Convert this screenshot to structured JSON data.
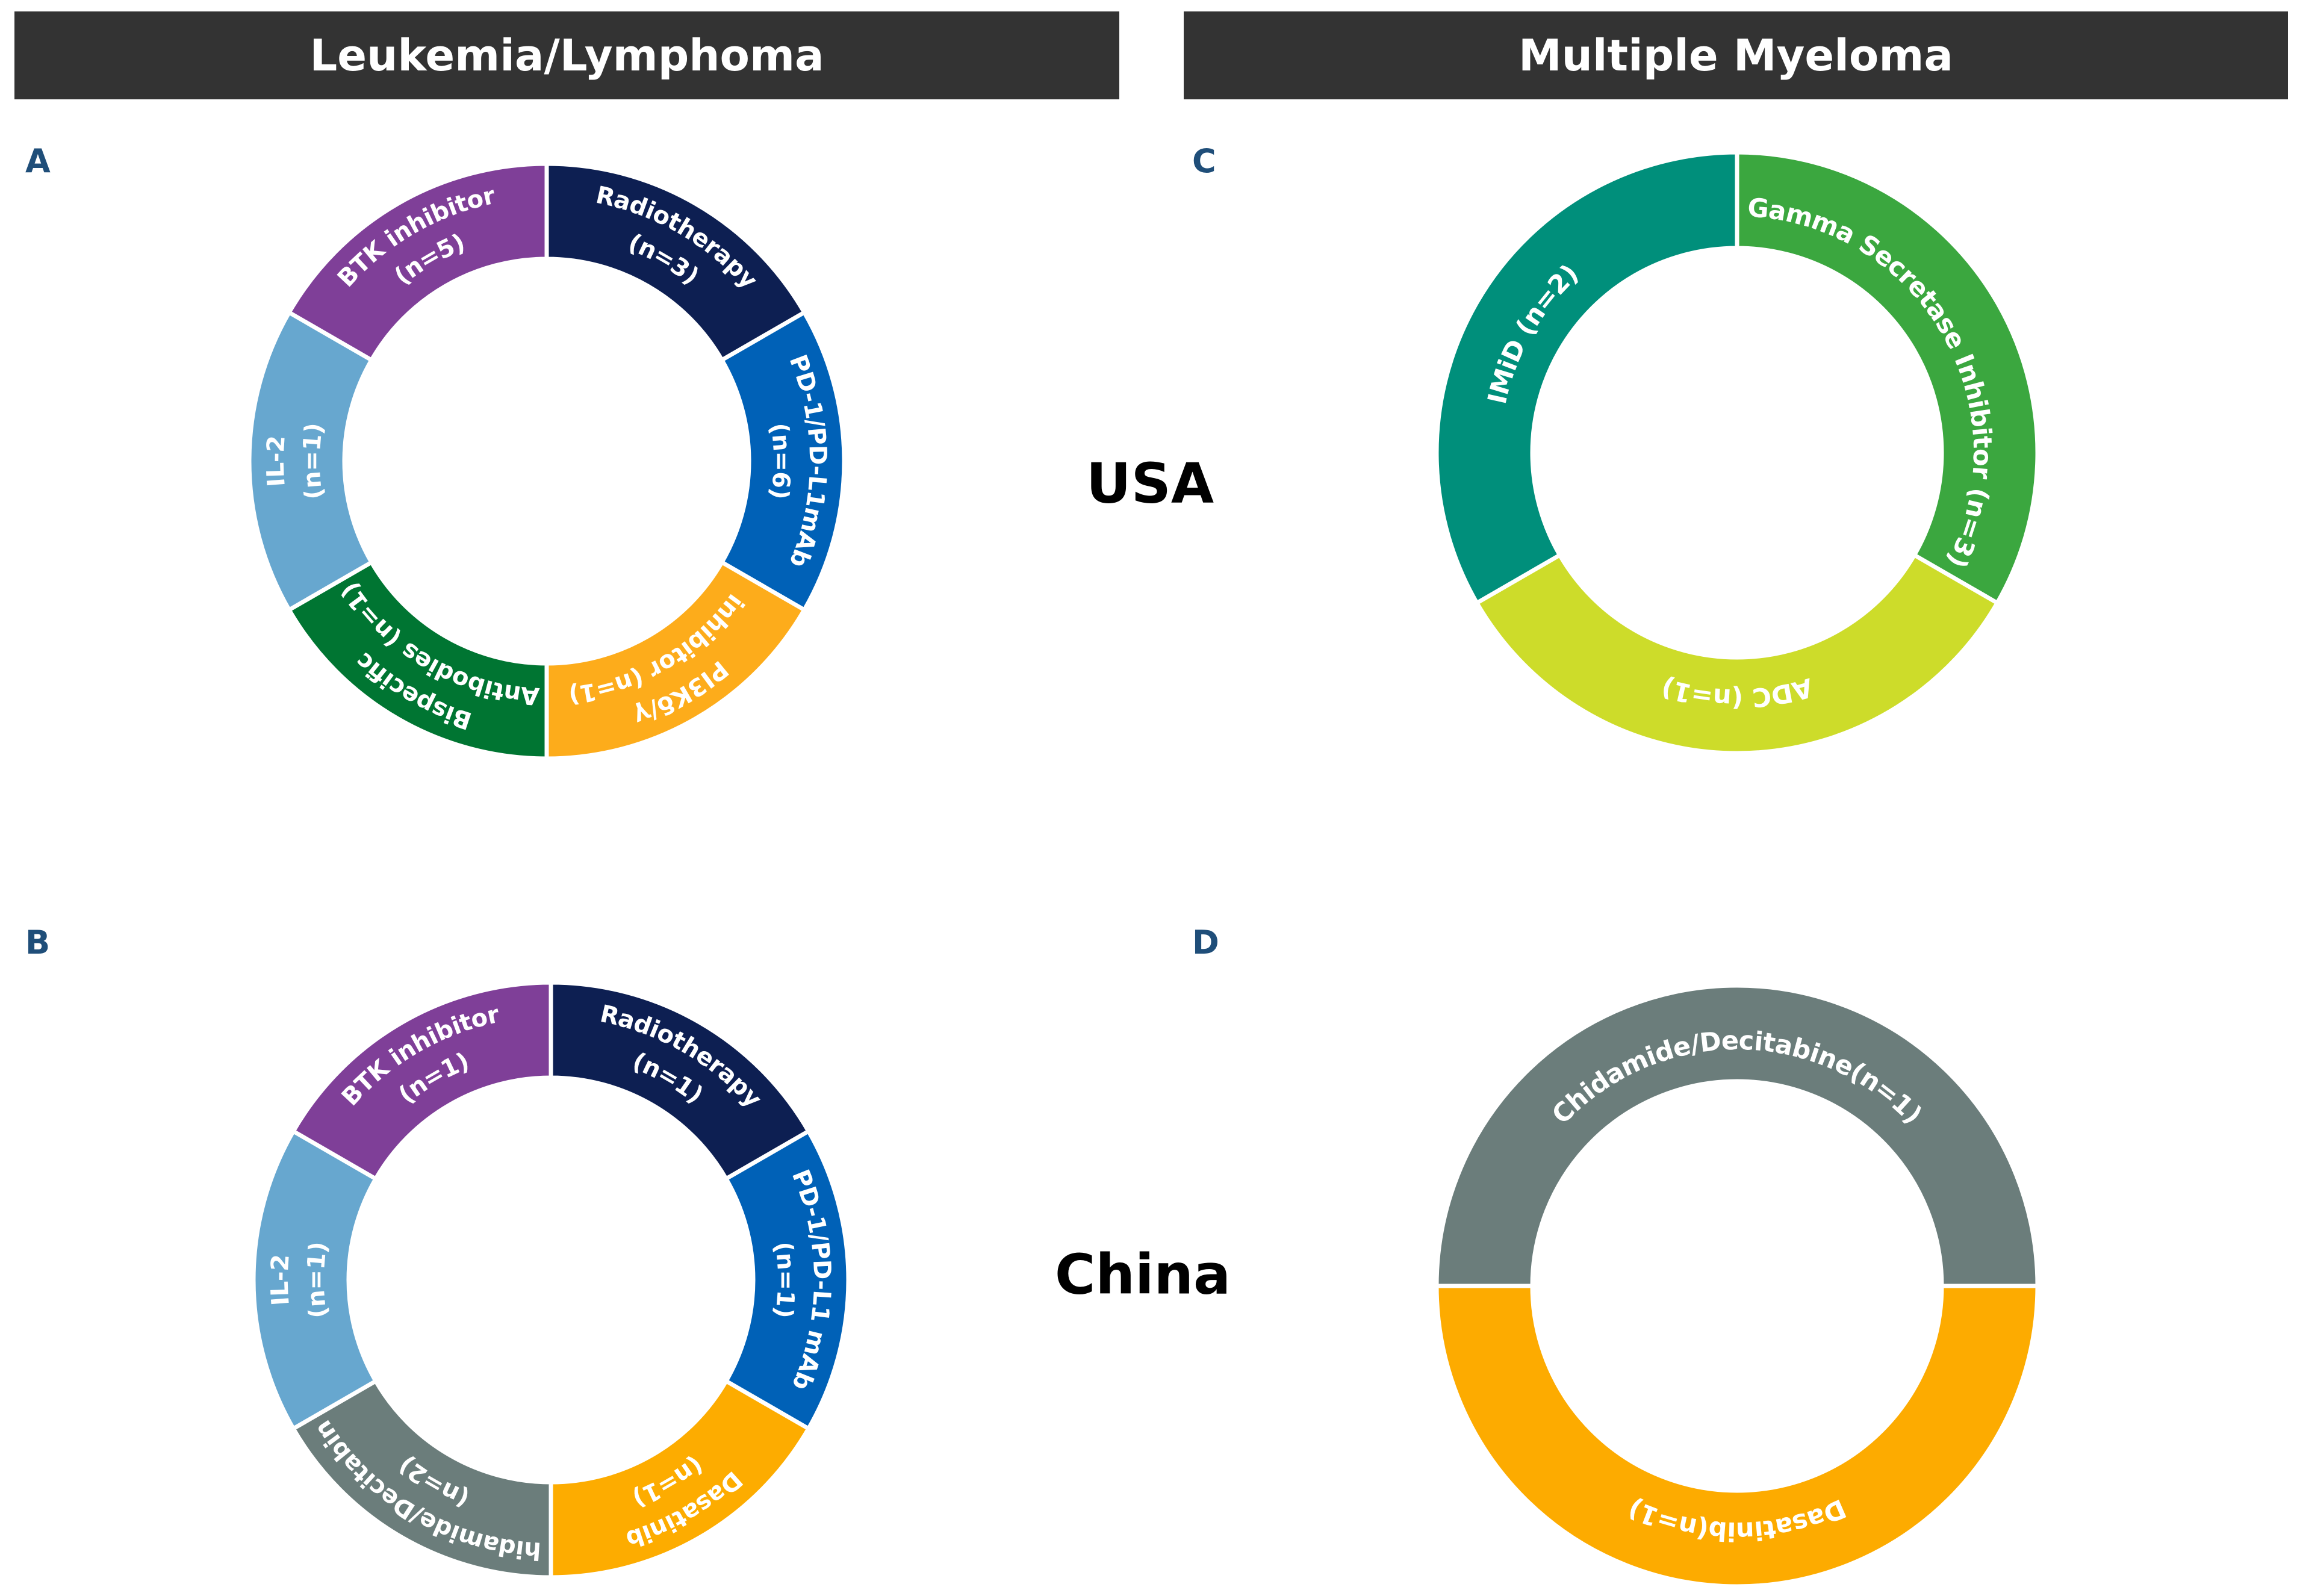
{
  "headers": {
    "left": "Leukemia/Lymphoma",
    "right": "Multiple Myeloma"
  },
  "row_labels": {
    "top": "USA",
    "bottom": "China"
  },
  "chart_data": [
    {
      "panel": "A",
      "type": "pie",
      "style": "donut",
      "segments_equal_size": true,
      "categories": [
        "Radiotherapy",
        "PD-1/PD-L1mAb",
        "PI3Kδ/γ inhibitor",
        "Bispecific Antibodies",
        "IL-2",
        "BTK inhibitor"
      ],
      "values": [
        3,
        6,
        1,
        1,
        1,
        5
      ],
      "labels": [
        [
          "Radiotherapy",
          "(n=3)"
        ],
        [
          "PD-1/PD-L1mAb",
          "(n=6)"
        ],
        [
          "PI3Kδ/γ",
          "inhibitor (n=1)"
        ],
        [
          "Bispecific",
          "Antibodies (n=1)"
        ],
        [
          "IL-2",
          "(n=1)"
        ],
        [
          "BTK inhibitor",
          "(n=5)"
        ]
      ],
      "colors": [
        "#0d1f52",
        "#0061b7",
        "#fdac1b",
        "#007532",
        "#67a7cf",
        "#7f3f98"
      ]
    },
    {
      "panel": "B",
      "type": "pie",
      "style": "donut",
      "segments_equal_size": true,
      "categories": [
        "Radiotherapy",
        "PD-1/PD-L1 mAb",
        "Dasatinib",
        "Chidamide/Decitabine",
        "IL-2",
        "BTK inhibitor"
      ],
      "values": [
        1,
        1,
        1,
        2,
        1,
        1
      ],
      "labels": [
        [
          "Radiotherapy",
          "(n=1)"
        ],
        [
          "PD-1/PD-L1 mAb",
          "(n=1)"
        ],
        [
          "Dasatinib",
          "(n=1)"
        ],
        [
          "Chidamide/Decitabine",
          "(n=2)"
        ],
        [
          "IL-2",
          "(n=1)"
        ],
        [
          "BTK inhibitor",
          "(n=1)"
        ]
      ],
      "colors": [
        "#0d1f52",
        "#0061b7",
        "#fdac00",
        "#6b7d7b",
        "#67a7cf",
        "#7f3f98"
      ]
    },
    {
      "panel": "C",
      "type": "pie",
      "style": "donut",
      "segments_equal_size": true,
      "categories": [
        "Gamma Secretase Inhibitor",
        "ADC",
        "IMiD"
      ],
      "values": [
        3,
        1,
        2
      ],
      "labels": [
        [
          "Gamma Secretase Inhibitor (n=3)"
        ],
        [
          "ADC (n=1)"
        ],
        [
          "IMiD (n=2)"
        ]
      ],
      "colors": [
        "#3ba73f",
        "#cddc2a",
        "#008f7b"
      ]
    },
    {
      "panel": "D",
      "type": "pie",
      "style": "donut",
      "segments_equal_size": true,
      "categories": [
        "Dasatinib",
        "Chidamide/Decitabine"
      ],
      "values": [
        1,
        1
      ],
      "labels": [
        [
          "Dasatinib(n=1)"
        ],
        [
          "Chidamide/Decitabine(n=1)"
        ]
      ],
      "colors": [
        "#fdab00",
        "#6b7d7b"
      ]
    }
  ]
}
